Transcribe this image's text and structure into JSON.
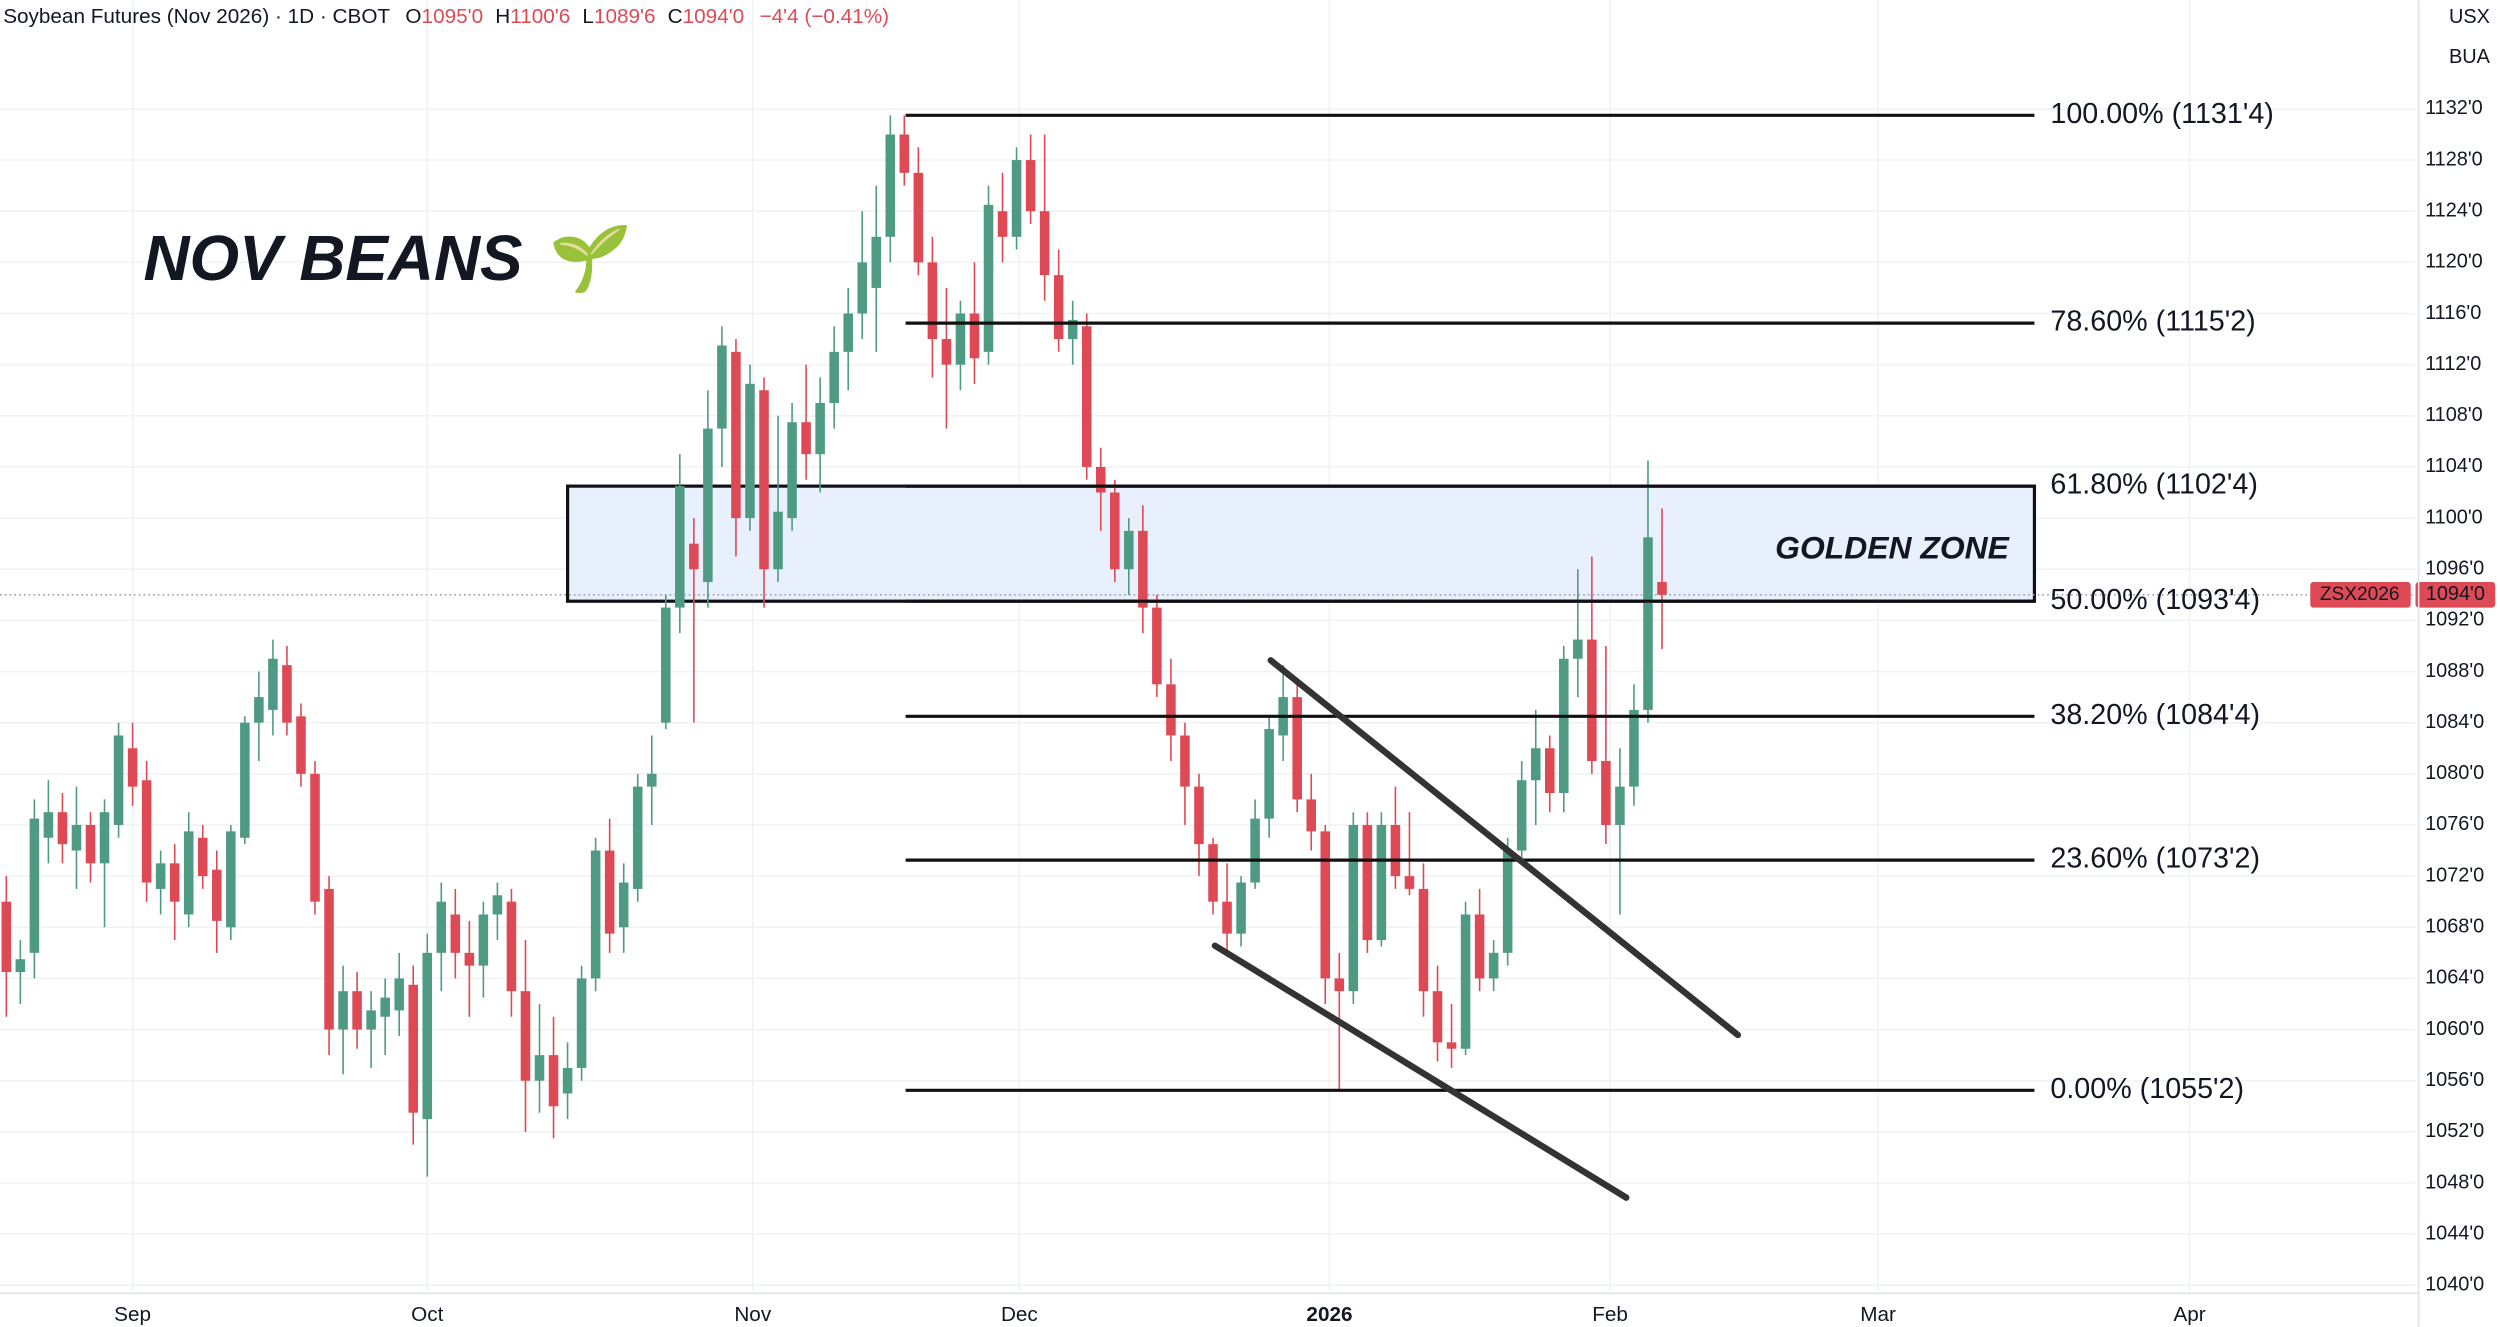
{
  "chart_data": {
    "type": "candlestick",
    "title": "NOV BEANS 🌱",
    "subtitle": "Soybean Futures (Nov 2026) · 1D · CBOT",
    "ohlc": [
      {
        "key": "O",
        "value": "1095'0"
      },
      {
        "key": "H",
        "value": "1100'6"
      },
      {
        "key": "L",
        "value": "1089'6"
      },
      {
        "key": "C",
        "value": "1094'0"
      }
    ],
    "change": "−4'4 (−0.41%)",
    "currency": "USX",
    "unit": "BUA",
    "symbol": "ZSX2026",
    "last_price": {
      "value": 1094,
      "label": "1094'0"
    },
    "up_color": "#4f9a83",
    "down_color": "#dd4a55",
    "grid": true,
    "open": [
      1070,
      1064.5,
      1066,
      1075,
      1077,
      1074,
      1076,
      1073,
      1076,
      1082,
      1079.5,
      1071,
      1073,
      1069,
      1075,
      1072.5,
      1068,
      1075,
      1084,
      1085,
      1088.5,
      1084.5,
      1080,
      1071,
      1060,
      1063,
      1060,
      1061,
      1061.5,
      1063.5,
      1053,
      1066,
      1069,
      1066,
      1065,
      1069,
      1070,
      1063,
      1056,
      1058,
      1055,
      1057,
      1064,
      1074,
      1068,
      1071,
      1079,
      1084,
      1093,
      1098,
      1095,
      1107,
      1113,
      1100,
      1110,
      1096,
      1100,
      1107.5,
      1105,
      1109,
      1113,
      1116,
      1118,
      1122,
      1130,
      1127,
      1120,
      1114,
      1112,
      1116,
      1113,
      1124,
      1122,
      1128,
      1124,
      1119,
      1114,
      1115,
      1104,
      1102,
      1096,
      1099,
      1093,
      1087,
      1083,
      1079,
      1074.5,
      1070,
      1067.5,
      1071.5,
      1076.5,
      1083,
      1086,
      1078,
      1075.5,
      1064,
      1063,
      1076,
      1067,
      1076,
      1072,
      1071,
      1063,
      1059,
      1058.5,
      1069,
      1064,
      1066,
      1074,
      1079.5,
      1082,
      1078.5,
      1089,
      1090.5,
      1081,
      1076,
      1079,
      1085,
      1095
    ],
    "high": [
      1072,
      1067,
      1078,
      1079.5,
      1078.5,
      1079,
      1077,
      1078,
      1084,
      1084,
      1081,
      1074,
      1074.5,
      1077,
      1076,
      1074,
      1076,
      1084.5,
      1088,
      1090.5,
      1090,
      1085.5,
      1081,
      1072,
      1065,
      1064.5,
      1063,
      1064,
      1066,
      1065,
      1067.5,
      1071.5,
      1071,
      1068.5,
      1070,
      1071.5,
      1071,
      1067,
      1062,
      1061,
      1059,
      1065,
      1075,
      1076.5,
      1073,
      1080,
      1083,
      1094,
      1105,
      1100,
      1110,
      1115,
      1114,
      1112,
      1111,
      1108,
      1109,
      1112,
      1111,
      1115,
      1118,
      1124,
      1126,
      1131.5,
      1131.5,
      1129,
      1122,
      1118,
      1117,
      1120,
      1126,
      1127,
      1129,
      1130,
      1130,
      1121,
      1117,
      1116,
      1105.5,
      1103,
      1100,
      1101,
      1094,
      1089,
      1084,
      1080,
      1075,
      1073,
      1072,
      1078,
      1084.5,
      1088.5,
      1087,
      1080,
      1076,
      1066,
      1077,
      1077,
      1077,
      1079,
      1077,
      1073,
      1065,
      1062,
      1070,
      1071,
      1067,
      1075,
      1081,
      1085,
      1083,
      1090,
      1096,
      1097,
      1090,
      1082,
      1087,
      1104.5,
      1100.75
    ],
    "low": [
      1061,
      1062,
      1064,
      1073,
      1073,
      1071,
      1071.5,
      1068,
      1075,
      1077.5,
      1070,
      1069,
      1067,
      1068,
      1071,
      1066,
      1067,
      1074.5,
      1081,
      1083,
      1083,
      1079,
      1069,
      1058,
      1056.5,
      1058.5,
      1057,
      1058,
      1059.5,
      1051,
      1048.5,
      1063,
      1064,
      1061,
      1062.5,
      1067,
      1061,
      1052,
      1053.5,
      1051.5,
      1053,
      1056,
      1063,
      1066,
      1066,
      1070,
      1076,
      1083.5,
      1091,
      1084,
      1093,
      1104,
      1097,
      1099,
      1093,
      1095,
      1099,
      1103,
      1102,
      1107,
      1110,
      1114,
      1113,
      1120,
      1126,
      1119,
      1111,
      1107,
      1110,
      1110.5,
      1112,
      1120,
      1121,
      1123,
      1117,
      1113,
      1112,
      1103,
      1099,
      1095,
      1094,
      1091,
      1086,
      1081,
      1076,
      1072,
      1069,
      1066,
      1066.5,
      1071,
      1075,
      1081,
      1077,
      1074,
      1062,
      1055.25,
      1062,
      1066,
      1066.5,
      1071,
      1070.5,
      1061,
      1057.5,
      1057,
      1058,
      1063,
      1063,
      1065,
      1073,
      1076,
      1077,
      1077,
      1086,
      1080,
      1074.5,
      1069,
      1077.5,
      1084,
      1089.75
    ],
    "close": [
      1064.5,
      1065.5,
      1076.5,
      1077,
      1074.5,
      1076,
      1073,
      1077,
      1083,
      1079,
      1071.5,
      1073,
      1070,
      1075.5,
      1072,
      1068.5,
      1075.5,
      1084,
      1086,
      1089,
      1084,
      1080,
      1070,
      1060,
      1063,
      1060,
      1061.5,
      1062.5,
      1064,
      1053.5,
      1066,
      1070,
      1066,
      1065,
      1069,
      1070.5,
      1063,
      1056,
      1058,
      1054,
      1057,
      1064,
      1074,
      1067.5,
      1071.5,
      1079,
      1080,
      1093,
      1102.5,
      1096,
      1107,
      1113.5,
      1100,
      1110.5,
      1096,
      1100.5,
      1107.5,
      1105,
      1109,
      1113,
      1116,
      1120,
      1122,
      1130,
      1127,
      1120,
      1114,
      1112,
      1116,
      1112.5,
      1124.5,
      1122,
      1128,
      1124,
      1119,
      1114,
      1115.5,
      1104,
      1102,
      1096,
      1099,
      1093,
      1087,
      1083,
      1079,
      1074.5,
      1070,
      1067.5,
      1071.5,
      1076.5,
      1083.5,
      1086,
      1078,
      1075.5,
      1064,
      1063,
      1076,
      1067,
      1076,
      1072,
      1071,
      1063,
      1059,
      1058.5,
      1069,
      1064,
      1066,
      1074,
      1079.5,
      1082,
      1078.5,
      1089,
      1090.5,
      1081,
      1076,
      1079,
      1085,
      1098.5,
      1094
    ],
    "xlim": [
      -0.45,
      171.7
    ],
    "xticks": [
      {
        "value": 9.0,
        "label": "Sep"
      },
      {
        "value": 30.0,
        "label": "Oct"
      },
      {
        "value": 53.2,
        "label": "Nov"
      },
      {
        "value": 72.2,
        "label": "Dec"
      },
      {
        "value": 94.3,
        "label": "2026",
        "bold": true
      },
      {
        "value": 114.3,
        "label": "Feb"
      },
      {
        "value": 133.4,
        "label": "Mar"
      },
      {
        "value": 155.6,
        "label": "Apr"
      }
    ],
    "ylim": [
      1039.5,
      1140.5
    ],
    "yticks": [
      {
        "value": 1040,
        "label": "1040'0"
      },
      {
        "value": 1044,
        "label": "1044'0"
      },
      {
        "value": 1048,
        "label": "1048'0"
      },
      {
        "value": 1052,
        "label": "1052'0"
      },
      {
        "value": 1056,
        "label": "1056'0"
      },
      {
        "value": 1060,
        "label": "1060'0"
      },
      {
        "value": 1064,
        "label": "1064'0"
      },
      {
        "value": 1068,
        "label": "1068'0"
      },
      {
        "value": 1072,
        "label": "1072'0"
      },
      {
        "value": 1076,
        "label": "1076'0"
      },
      {
        "value": 1080,
        "label": "1080'0"
      },
      {
        "value": 1084,
        "label": "1084'0"
      },
      {
        "value": 1088,
        "label": "1088'0"
      },
      {
        "value": 1092,
        "label": "1092'0"
      },
      {
        "value": 1096,
        "label": "1096'0"
      },
      {
        "value": 1100,
        "label": "1100'0"
      },
      {
        "value": 1104,
        "label": "1104'0"
      },
      {
        "value": 1108,
        "label": "1108'0"
      },
      {
        "value": 1112,
        "label": "1112'0"
      },
      {
        "value": 1116,
        "label": "1116'0"
      },
      {
        "value": 1120,
        "label": "1120'0"
      },
      {
        "value": 1124,
        "label": "1124'0"
      },
      {
        "value": 1128,
        "label": "1128'0"
      },
      {
        "value": 1132,
        "label": "1132'0"
      }
    ],
    "fib_levels": [
      {
        "value": 1131.5,
        "label": "100.00% (1131'4)"
      },
      {
        "value": 1115.25,
        "label": "78.60% (1115'2)"
      },
      {
        "value": 1102.5,
        "label": "61.80% (1102'4)"
      },
      {
        "value": 1093.5,
        "label": "50.00% (1093'4)"
      },
      {
        "value": 1084.5,
        "label": "38.20% (1084'4)"
      },
      {
        "value": 1073.25,
        "label": "23.60% (1073'2)"
      },
      {
        "value": 1055.25,
        "label": "0.00% (1055'2)"
      }
    ],
    "zone_label": "GOLDEN ZONE"
  }
}
